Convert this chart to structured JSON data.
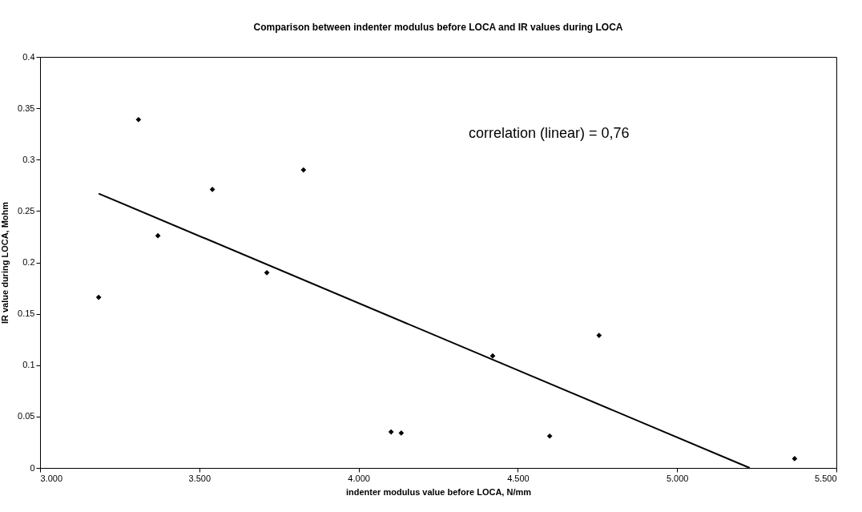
{
  "chart_data": {
    "type": "scatter",
    "title": "Comparison between indenter modulus before LOCA and IR values during LOCA",
    "xlabel": "indenter modulus value before LOCA, N/mm",
    "ylabel": "IR value during LOCA, Mohm",
    "xlim": [
      3.0,
      5.5
    ],
    "xticks": [
      {
        "value": 3.0,
        "label": "3.000"
      },
      {
        "value": 3.5,
        "label": "3.500"
      },
      {
        "value": 4.0,
        "label": "4.000"
      },
      {
        "value": 4.5,
        "label": "4.500"
      },
      {
        "value": 5.0,
        "label": "5.000"
      },
      {
        "value": 5.5,
        "label": "5.500"
      }
    ],
    "ylim": [
      0,
      0.4
    ],
    "yticks": [
      0,
      0.05,
      0.1,
      0.15,
      0.2,
      0.25,
      0.3,
      0.35,
      0.4
    ],
    "grid": false,
    "series": [
      {
        "color": "#000000",
        "marker": "diamond",
        "x": [
          3.184,
          3.309,
          3.37,
          3.541,
          3.712,
          3.827,
          4.102,
          4.134,
          4.421,
          4.6,
          4.755,
          5.369
        ],
        "values": [
          0.166,
          0.339,
          0.226,
          0.271,
          0.19,
          0.29,
          0.035,
          0.034,
          0.109,
          0.031,
          0.129,
          0.009
        ]
      },
      {
        "type": "line",
        "color": "#000000",
        "line_style": "solid",
        "x": [
          3.184,
          5.228
        ],
        "values": [
          0.267,
          0
        ]
      }
    ],
    "annotations": [
      "correlation (linear) = 0,76"
    ]
  }
}
